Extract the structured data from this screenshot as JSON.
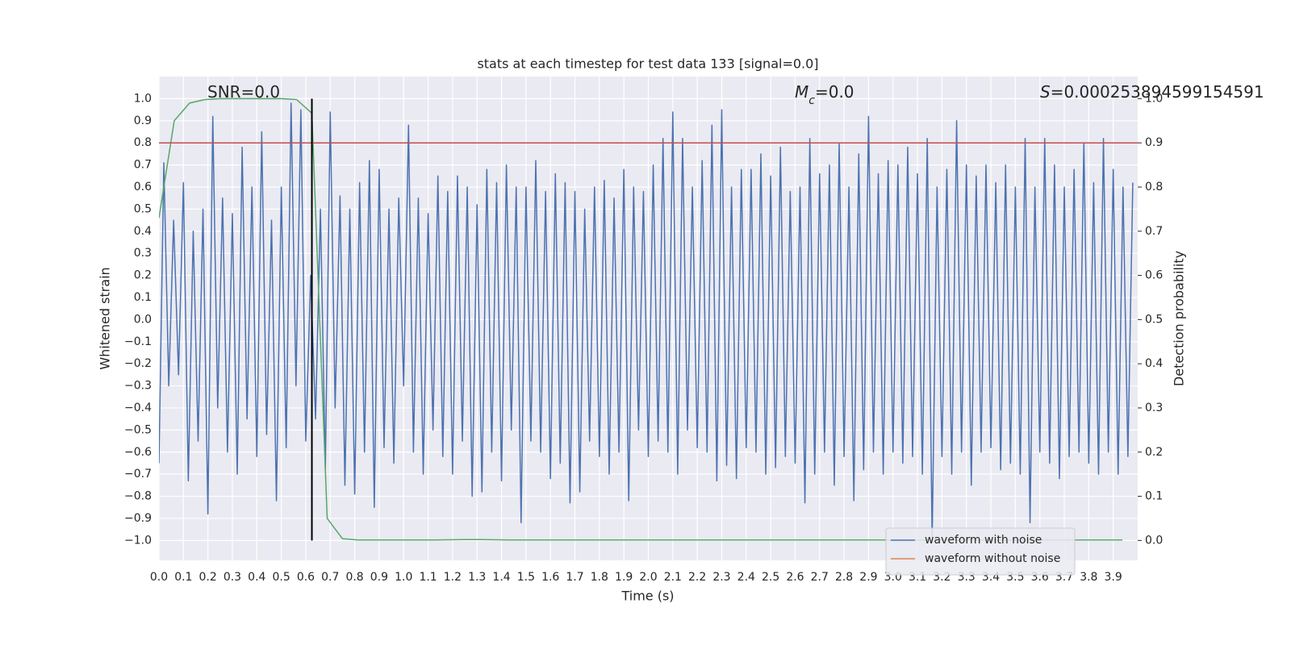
{
  "chart_data": {
    "type": "line",
    "title": "stats at each timestep for test data 133 [signal=0.0]",
    "xlabel": "Time (s)",
    "ylabel": "Whitened strain",
    "y2label": "Detection probability",
    "annotations": [
      {
        "text": "SNR=0.0"
      },
      {
        "symbol": "M",
        "subscript": "c",
        "text": "=0.0"
      },
      {
        "symbol": "S",
        "text": "=0.000253894599154591"
      }
    ],
    "xlim": [
      0,
      4.0
    ],
    "ylim": [
      -1.09,
      1.1
    ],
    "y2lim": [
      -0.045,
      1.05
    ],
    "xticks": [
      {
        "value": 0,
        "label": "0.0"
      },
      0.1,
      0.2,
      0.3,
      0.4,
      0.5,
      0.6,
      0.7,
      0.8,
      0.9,
      {
        "value": 1,
        "label": "1.0"
      },
      1.1,
      1.2,
      1.3,
      1.4,
      1.5,
      1.6,
      1.7,
      1.8,
      1.9,
      {
        "value": 2,
        "label": "2.0"
      },
      2.1,
      2.2,
      2.3,
      2.4,
      2.5,
      2.6,
      2.7,
      2.8,
      2.9,
      {
        "value": 3,
        "label": "3.0"
      },
      3.1,
      3.2,
      3.3,
      3.4,
      3.5,
      3.6,
      3.7,
      3.8,
      3.9
    ],
    "yticks": [
      {
        "value": -1,
        "label": "−1.0"
      },
      {
        "value": -0.9,
        "label": "−0.9"
      },
      {
        "value": -0.8,
        "label": "−0.8"
      },
      {
        "value": -0.7,
        "label": "−0.7"
      },
      {
        "value": -0.6,
        "label": "−0.6"
      },
      {
        "value": -0.5,
        "label": "−0.5"
      },
      {
        "value": -0.4,
        "label": "−0.4"
      },
      {
        "value": -0.3,
        "label": "−0.3"
      },
      {
        "value": -0.2,
        "label": "−0.2"
      },
      {
        "value": -0.1,
        "label": "−0.1"
      },
      {
        "value": 0,
        "label": "0.0"
      },
      0.1,
      0.2,
      0.3,
      0.4,
      0.5,
      0.6,
      0.7,
      0.8,
      0.9,
      {
        "value": 1,
        "label": "1.0"
      }
    ],
    "y2ticks": [
      {
        "value": 0,
        "label": "0.0"
      },
      0.1,
      0.2,
      0.3,
      0.4,
      0.5,
      0.6,
      0.7,
      0.8,
      0.9,
      {
        "value": 1,
        "label": "1.0"
      }
    ],
    "grid": true,
    "legend": "lower right",
    "series": [
      {
        "name": "waveform with noise",
        "color": "#4c72b0",
        "x": [
          0,
          0.02,
          0.04,
          0.06,
          0.08,
          0.1,
          0.12,
          0.14,
          0.16,
          0.18,
          0.2,
          0.22,
          0.24,
          0.26,
          0.28,
          0.3,
          0.32,
          0.34,
          0.36,
          0.38,
          0.4,
          0.42,
          0.44,
          0.46,
          0.48,
          0.5,
          0.52,
          0.54,
          0.56,
          0.58,
          0.6,
          0.62,
          0.64,
          0.66,
          0.68,
          0.7,
          0.72,
          0.74,
          0.76,
          0.78,
          0.8,
          0.82,
          0.84,
          0.86,
          0.88,
          0.9,
          0.92,
          0.94,
          0.96,
          0.98,
          1,
          1.02,
          1.04,
          1.06,
          1.08,
          1.1,
          1.12,
          1.14,
          1.16,
          1.18,
          1.2,
          1.22,
          1.24,
          1.26,
          1.28,
          1.3,
          1.32,
          1.34,
          1.36,
          1.38,
          1.4,
          1.42,
          1.44,
          1.46,
          1.48,
          1.5,
          1.52,
          1.54,
          1.56,
          1.58,
          1.6,
          1.62,
          1.64,
          1.66,
          1.68,
          1.7,
          1.72,
          1.74,
          1.76,
          1.78,
          1.8,
          1.82,
          1.84,
          1.86,
          1.88,
          1.9,
          1.92,
          1.94,
          1.96,
          1.98,
          2,
          2.02,
          2.04,
          2.06,
          2.08,
          2.1,
          2.12,
          2.14,
          2.16,
          2.18,
          2.2,
          2.22,
          2.24,
          2.26,
          2.28,
          2.3,
          2.32,
          2.34,
          2.36,
          2.38,
          2.4,
          2.42,
          2.44,
          2.46,
          2.48,
          2.5,
          2.52,
          2.54,
          2.56,
          2.58,
          2.6,
          2.62,
          2.64,
          2.66,
          2.68,
          2.7,
          2.72,
          2.74,
          2.76,
          2.78,
          2.8,
          2.82,
          2.84,
          2.86,
          2.88,
          2.9,
          2.92,
          2.94,
          2.96,
          2.98,
          3,
          3.02,
          3.04,
          3.06,
          3.08,
          3.1,
          3.12,
          3.14,
          3.16,
          3.18,
          3.2,
          3.22,
          3.24,
          3.26,
          3.28,
          3.3,
          3.32,
          3.34,
          3.36,
          3.38,
          3.4,
          3.42,
          3.44,
          3.46,
          3.48,
          3.5,
          3.52,
          3.54,
          3.56,
          3.58,
          3.6,
          3.62,
          3.64,
          3.66,
          3.68,
          3.7,
          3.72,
          3.74,
          3.76,
          3.78,
          3.8,
          3.82,
          3.84,
          3.86,
          3.88,
          3.9,
          3.92,
          3.94,
          3.96,
          3.98
        ],
        "values": [
          -0.65,
          0.71,
          -0.3,
          0.45,
          -0.25,
          0.62,
          -0.73,
          0.4,
          -0.55,
          0.5,
          -0.88,
          0.92,
          -0.4,
          0.55,
          -0.6,
          0.48,
          -0.7,
          0.78,
          -0.45,
          0.6,
          -0.62,
          0.85,
          -0.52,
          0.45,
          -0.82,
          0.6,
          -0.58,
          0.98,
          -0.3,
          0.95,
          -0.55,
          0.2,
          -0.45,
          0.5,
          -0.68,
          0.94,
          -0.4,
          0.56,
          -0.75,
          0.5,
          -0.79,
          0.62,
          -0.6,
          0.72,
          -0.85,
          0.68,
          -0.58,
          0.5,
          -0.65,
          0.55,
          -0.3,
          0.88,
          -0.6,
          0.55,
          -0.7,
          0.48,
          -0.5,
          0.65,
          -0.62,
          0.58,
          -0.7,
          0.65,
          -0.55,
          0.6,
          -0.8,
          0.52,
          -0.78,
          0.68,
          -0.6,
          0.62,
          -0.73,
          0.7,
          -0.5,
          0.6,
          -0.92,
          0.6,
          -0.55,
          0.72,
          -0.6,
          0.58,
          -0.72,
          0.66,
          -0.65,
          0.62,
          -0.83,
          0.58,
          -0.78,
          0.5,
          -0.55,
          0.6,
          -0.62,
          0.63,
          -0.7,
          0.55,
          -0.6,
          0.68,
          -0.82,
          0.6,
          -0.5,
          0.58,
          -0.62,
          0.7,
          -0.55,
          0.82,
          -0.6,
          0.94,
          -0.7,
          0.82,
          -0.5,
          0.6,
          -0.58,
          0.72,
          -0.6,
          0.88,
          -0.73,
          0.95,
          -0.66,
          0.6,
          -0.72,
          0.68,
          -0.58,
          0.68,
          -0.6,
          0.75,
          -0.7,
          0.65,
          -0.67,
          0.78,
          -0.62,
          0.58,
          -0.65,
          0.6,
          -0.83,
          0.82,
          -0.7,
          0.66,
          -0.6,
          0.7,
          -0.75,
          0.8,
          -0.62,
          0.6,
          -0.82,
          0.75,
          -0.68,
          0.92,
          -0.6,
          0.66,
          -0.7,
          0.72,
          -0.6,
          0.7,
          -0.65,
          0.78,
          -0.62,
          0.66,
          -0.7,
          0.82,
          -1.0,
          0.6,
          -0.62,
          0.68,
          -0.7,
          0.9,
          -0.6,
          0.7,
          -0.75,
          0.65,
          -0.6,
          0.7,
          -0.58,
          0.62,
          -0.68,
          0.7,
          -0.65,
          0.6,
          -0.7,
          0.82,
          -0.92,
          0.6,
          -0.6,
          0.82,
          -0.65,
          0.7,
          -0.72,
          0.6,
          -0.62,
          0.68,
          -0.6,
          0.8,
          -0.65,
          0.62,
          -0.7,
          0.82,
          -0.6,
          0.68,
          -0.7,
          0.6,
          -0.62,
          0.62
        ]
      },
      {
        "name": "waveform without noise",
        "color": "#dd8452",
        "x": [],
        "values": []
      },
      {
        "color": "#55a868",
        "axis": "y2",
        "x": [
          0,
          0.0625,
          0.125,
          0.1875,
          0.25,
          0.3125,
          0.375,
          0.4375,
          0.5,
          0.5625,
          0.625,
          0.6875,
          0.75,
          0.8125,
          0.875,
          0.9375,
          1,
          1.0625,
          1.125,
          1.1875,
          1.25,
          1.3125,
          1.375,
          1.4375,
          1.5,
          1.5625,
          1.625,
          1.6875,
          1.75,
          1.8125,
          1.875,
          1.9375,
          2,
          2.0625,
          2.125,
          2.1875,
          2.25,
          2.3125,
          2.375,
          2.4375,
          2.5,
          2.5625,
          2.625,
          2.6875,
          2.75,
          2.8125,
          2.875,
          2.9375,
          3,
          3.0625,
          3.125,
          3.1875,
          3.25,
          3.3125,
          3.375,
          3.4375,
          3.5,
          3.5625,
          3.625,
          3.6875,
          3.75,
          3.8125,
          3.875,
          3.9375
        ],
        "values": [
          0.73,
          0.95,
          0.99,
          0.998,
          1,
          1,
          1,
          1,
          1,
          0.998,
          0.967,
          0.05,
          0.004,
          0.001,
          0.001,
          0.001,
          0.001,
          0.001,
          0.001,
          0.0015,
          0.002,
          0.002,
          0.0015,
          0.001,
          0.001,
          0.001,
          0.001,
          0.001,
          0.001,
          0.001,
          0.001,
          0.001,
          0.001,
          0.001,
          0.001,
          0.001,
          0.001,
          0.001,
          0.001,
          0.001,
          0.001,
          0.001,
          0.001,
          0.001,
          0.001,
          0.001,
          0.001,
          0.001,
          0.001,
          0.001,
          0.001,
          0.001,
          0.001,
          0.001,
          0.001,
          0.001,
          0.001,
          0.001,
          0.001,
          0.001,
          0.001,
          0.001,
          0.001,
          0.001
        ]
      }
    ],
    "hlines": [
      {
        "y": 0.8,
        "color": "#c44e52"
      }
    ],
    "vlines": [
      {
        "x": 0.625,
        "ymin": -1,
        "ymax": 1,
        "color": "#000000"
      }
    ]
  }
}
